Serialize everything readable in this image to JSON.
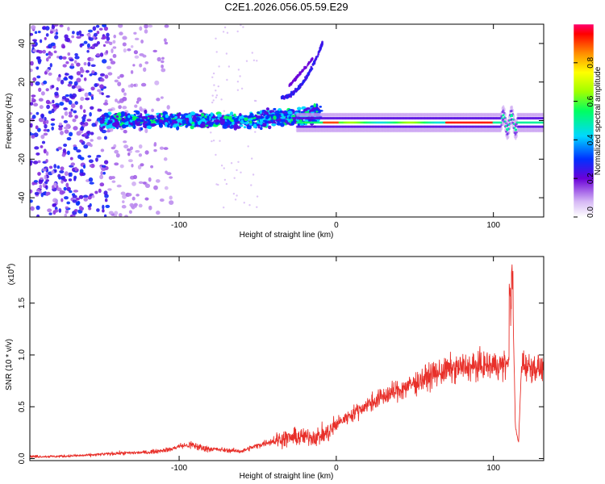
{
  "title": "C2E1.2026.056.05.59.E29",
  "colors": {
    "snr_line": "#e8302a",
    "background": "#ffffff",
    "axis": "#000000"
  },
  "chart_data": [
    {
      "type": "heatmap",
      "name": "spectrogram",
      "xlabel": "Height of straight line (km)",
      "ylabel": "Frequency (Hz)",
      "xlim": [
        -195,
        132
      ],
      "ylim": [
        -50,
        50
      ],
      "x_ticks": [
        -100,
        0,
        100
      ],
      "x_tick_labels": [
        "-100",
        "0",
        "100"
      ],
      "y_ticks": [
        40,
        20,
        0,
        -20,
        -40
      ],
      "y_tick_labels": [
        "40",
        "20",
        "0",
        "-20",
        "-40"
      ],
      "colorbar": {
        "label": "Normalized spectral amplitude",
        "range": [
          0,
          1
        ],
        "ticks": [
          0.0,
          0.2,
          0.4,
          0.6,
          0.8
        ],
        "tick_labels": [
          "0.0",
          "0.2",
          "0.4",
          "0.6",
          "0.8"
        ]
      },
      "features": {
        "noise_region_km": [
          -195,
          -110
        ],
        "signal_band_start_km": -150,
        "stable_band_start_km": -10,
        "stable_band_center_hz": -1,
        "peak_amplitude_region_km": [
          70,
          100
        ],
        "disturbance_km": 110,
        "rising_branch_km": [
          -30,
          -10
        ],
        "rising_branch_hz": [
          12,
          42
        ]
      }
    },
    {
      "type": "line",
      "name": "snr",
      "xlabel": "Height of straight line (km)",
      "ylabel": "SNR (10 * v/v)",
      "y_scale_label": "(x10",
      "y_scale_exponent": "4",
      "y_scale_close": ")",
      "xlim": [
        -195,
        132
      ],
      "ylim": [
        -0.02,
        1.95
      ],
      "x_ticks": [
        -100,
        0,
        100
      ],
      "x_tick_labels": [
        "-100",
        "0",
        "100"
      ],
      "y_ticks": [
        0.0,
        0.5,
        1.0,
        1.5
      ],
      "y_tick_labels": [
        "0.0",
        "0.5",
        "1.0",
        "1.5"
      ],
      "series": [
        {
          "name": "SNR",
          "x": [
            -195,
            -180,
            -160,
            -150,
            -140,
            -120,
            -105,
            -100,
            -92,
            -85,
            -70,
            -60,
            -55,
            -45,
            -38,
            -30,
            -22,
            -15,
            -10,
            -5,
            0,
            10,
            20,
            30,
            40,
            50,
            60,
            70,
            80,
            90,
            100,
            105,
            108,
            110,
            112,
            114,
            116,
            118,
            120,
            125,
            132
          ],
          "y": [
            0.02,
            0.02,
            0.03,
            0.04,
            0.05,
            0.06,
            0.09,
            0.12,
            0.13,
            0.1,
            0.08,
            0.07,
            0.1,
            0.15,
            0.18,
            0.2,
            0.21,
            0.21,
            0.22,
            0.25,
            0.33,
            0.43,
            0.52,
            0.6,
            0.66,
            0.73,
            0.8,
            0.85,
            0.88,
            0.89,
            0.9,
            0.9,
            0.91,
            0.95,
            1.75,
            0.3,
            0.15,
            0.95,
            0.9,
            0.88,
            0.87
          ]
        }
      ]
    }
  ]
}
